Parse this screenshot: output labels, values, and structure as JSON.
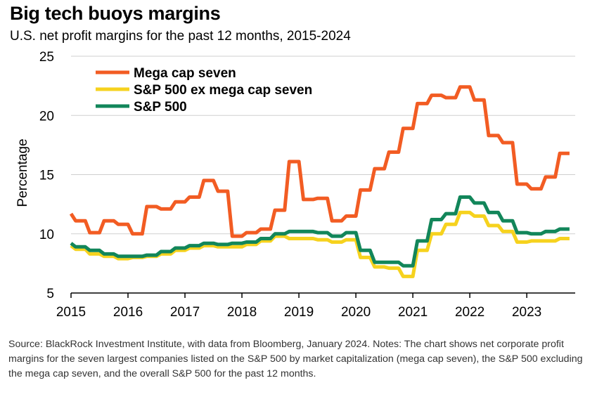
{
  "title": "Big tech buoys margins",
  "subtitle": "U.S. net profit margins for the past 12 months, 2015-2024",
  "notes": "Source: BlackRock Investment Institute, with data from Bloomberg, January 2024. Notes: The chart shows net corporate profit margins for the seven largest companies listed on the S&P 500 by market capitalization (mega cap seven), the S&P 500 excluding the mega cap seven, and the overall S&P 500 for the past 12 months.",
  "chart_data": {
    "type": "line",
    "ylabel": "Percentage",
    "xlabel": "",
    "ylim": [
      5,
      25
    ],
    "xlim": [
      2015,
      2023.85
    ],
    "yticks": [
      5,
      10,
      15,
      20,
      25
    ],
    "xticks": [
      2015,
      2016,
      2017,
      2018,
      2019,
      2020,
      2021,
      2022,
      2023
    ],
    "grid": "horizontal",
    "legend": "top-left",
    "series": [
      {
        "name": "Mega cap seven",
        "color": "#f25c23",
        "points": [
          [
            2015.0,
            11.7
          ],
          [
            2015.08,
            11.1
          ],
          [
            2015.25,
            11.1
          ],
          [
            2015.33,
            10.1
          ],
          [
            2015.5,
            10.1
          ],
          [
            2015.58,
            11.1
          ],
          [
            2015.75,
            11.1
          ],
          [
            2015.83,
            10.8
          ],
          [
            2016.0,
            10.8
          ],
          [
            2016.08,
            10.0
          ],
          [
            2016.25,
            10.0
          ],
          [
            2016.33,
            12.3
          ],
          [
            2016.5,
            12.3
          ],
          [
            2016.58,
            12.1
          ],
          [
            2016.75,
            12.1
          ],
          [
            2016.83,
            12.7
          ],
          [
            2017.0,
            12.7
          ],
          [
            2017.08,
            13.1
          ],
          [
            2017.25,
            13.1
          ],
          [
            2017.33,
            14.5
          ],
          [
            2017.5,
            14.5
          ],
          [
            2017.58,
            13.6
          ],
          [
            2017.75,
            13.6
          ],
          [
            2017.83,
            9.8
          ],
          [
            2018.0,
            9.8
          ],
          [
            2018.08,
            10.1
          ],
          [
            2018.25,
            10.1
          ],
          [
            2018.33,
            10.4
          ],
          [
            2018.5,
            10.4
          ],
          [
            2018.58,
            12.0
          ],
          [
            2018.75,
            12.0
          ],
          [
            2018.83,
            16.1
          ],
          [
            2019.0,
            16.1
          ],
          [
            2019.08,
            12.9
          ],
          [
            2019.25,
            12.9
          ],
          [
            2019.33,
            13.0
          ],
          [
            2019.5,
            13.0
          ],
          [
            2019.58,
            11.1
          ],
          [
            2019.75,
            11.1
          ],
          [
            2019.83,
            11.5
          ],
          [
            2020.0,
            11.5
          ],
          [
            2020.08,
            13.7
          ],
          [
            2020.25,
            13.7
          ],
          [
            2020.33,
            15.5
          ],
          [
            2020.5,
            15.5
          ],
          [
            2020.58,
            16.9
          ],
          [
            2020.75,
            16.9
          ],
          [
            2020.83,
            18.9
          ],
          [
            2021.0,
            18.9
          ],
          [
            2021.08,
            21.0
          ],
          [
            2021.25,
            21.0
          ],
          [
            2021.33,
            21.7
          ],
          [
            2021.5,
            21.7
          ],
          [
            2021.58,
            21.5
          ],
          [
            2021.75,
            21.5
          ],
          [
            2021.83,
            22.4
          ],
          [
            2022.0,
            22.4
          ],
          [
            2022.08,
            21.3
          ],
          [
            2022.25,
            21.3
          ],
          [
            2022.33,
            18.3
          ],
          [
            2022.5,
            18.3
          ],
          [
            2022.58,
            17.7
          ],
          [
            2022.75,
            17.7
          ],
          [
            2022.83,
            14.2
          ],
          [
            2023.0,
            14.2
          ],
          [
            2023.08,
            13.8
          ],
          [
            2023.25,
            13.8
          ],
          [
            2023.33,
            14.8
          ],
          [
            2023.5,
            14.8
          ],
          [
            2023.58,
            16.8
          ],
          [
            2023.75,
            16.8
          ]
        ]
      },
      {
        "name": "S&P 500 ex mega cap seven",
        "color": "#f6d21e",
        "points": [
          [
            2015.0,
            9.0
          ],
          [
            2015.08,
            8.7
          ],
          [
            2015.25,
            8.7
          ],
          [
            2015.33,
            8.3
          ],
          [
            2015.5,
            8.3
          ],
          [
            2015.58,
            8.1
          ],
          [
            2015.75,
            8.1
          ],
          [
            2015.83,
            7.9
          ],
          [
            2016.0,
            7.9
          ],
          [
            2016.08,
            8.0
          ],
          [
            2016.25,
            8.0
          ],
          [
            2016.33,
            8.1
          ],
          [
            2016.5,
            8.1
          ],
          [
            2016.58,
            8.3
          ],
          [
            2016.75,
            8.3
          ],
          [
            2016.83,
            8.6
          ],
          [
            2017.0,
            8.6
          ],
          [
            2017.08,
            8.8
          ],
          [
            2017.25,
            8.8
          ],
          [
            2017.33,
            9.0
          ],
          [
            2017.5,
            9.0
          ],
          [
            2017.58,
            8.9
          ],
          [
            2017.75,
            8.9
          ],
          [
            2017.83,
            8.9
          ],
          [
            2018.0,
            8.9
          ],
          [
            2018.08,
            9.1
          ],
          [
            2018.25,
            9.1
          ],
          [
            2018.33,
            9.4
          ],
          [
            2018.5,
            9.4
          ],
          [
            2018.58,
            9.8
          ],
          [
            2018.75,
            9.8
          ],
          [
            2018.83,
            9.6
          ],
          [
            2019.0,
            9.6
          ],
          [
            2019.08,
            9.6
          ],
          [
            2019.25,
            9.6
          ],
          [
            2019.33,
            9.5
          ],
          [
            2019.5,
            9.5
          ],
          [
            2019.58,
            9.3
          ],
          [
            2019.75,
            9.3
          ],
          [
            2019.83,
            9.5
          ],
          [
            2020.0,
            9.5
          ],
          [
            2020.08,
            8.0
          ],
          [
            2020.25,
            8.0
          ],
          [
            2020.33,
            7.2
          ],
          [
            2020.5,
            7.2
          ],
          [
            2020.58,
            7.1
          ],
          [
            2020.75,
            7.1
          ],
          [
            2020.83,
            6.4
          ],
          [
            2021.0,
            6.4
          ],
          [
            2021.08,
            8.6
          ],
          [
            2021.25,
            8.6
          ],
          [
            2021.33,
            10.0
          ],
          [
            2021.5,
            10.0
          ],
          [
            2021.58,
            10.8
          ],
          [
            2021.75,
            10.8
          ],
          [
            2021.83,
            11.8
          ],
          [
            2022.0,
            11.8
          ],
          [
            2022.08,
            11.5
          ],
          [
            2022.25,
            11.5
          ],
          [
            2022.33,
            10.7
          ],
          [
            2022.5,
            10.7
          ],
          [
            2022.58,
            10.2
          ],
          [
            2022.75,
            10.2
          ],
          [
            2022.83,
            9.3
          ],
          [
            2023.0,
            9.3
          ],
          [
            2023.08,
            9.4
          ],
          [
            2023.25,
            9.4
          ],
          [
            2023.33,
            9.4
          ],
          [
            2023.5,
            9.4
          ],
          [
            2023.58,
            9.6
          ],
          [
            2023.75,
            9.6
          ]
        ]
      },
      {
        "name": "S&P 500",
        "color": "#12865a",
        "points": [
          [
            2015.0,
            9.2
          ],
          [
            2015.08,
            8.9
          ],
          [
            2015.25,
            8.9
          ],
          [
            2015.33,
            8.6
          ],
          [
            2015.5,
            8.6
          ],
          [
            2015.58,
            8.3
          ],
          [
            2015.75,
            8.3
          ],
          [
            2015.83,
            8.1
          ],
          [
            2016.0,
            8.1
          ],
          [
            2016.08,
            8.1
          ],
          [
            2016.25,
            8.1
          ],
          [
            2016.33,
            8.2
          ],
          [
            2016.5,
            8.2
          ],
          [
            2016.58,
            8.5
          ],
          [
            2016.75,
            8.5
          ],
          [
            2016.83,
            8.8
          ],
          [
            2017.0,
            8.8
          ],
          [
            2017.08,
            9.0
          ],
          [
            2017.25,
            9.0
          ],
          [
            2017.33,
            9.2
          ],
          [
            2017.5,
            9.2
          ],
          [
            2017.58,
            9.1
          ],
          [
            2017.75,
            9.1
          ],
          [
            2017.83,
            9.2
          ],
          [
            2018.0,
            9.2
          ],
          [
            2018.08,
            9.3
          ],
          [
            2018.25,
            9.3
          ],
          [
            2018.33,
            9.6
          ],
          [
            2018.5,
            9.6
          ],
          [
            2018.58,
            10.0
          ],
          [
            2018.75,
            10.0
          ],
          [
            2018.83,
            10.2
          ],
          [
            2019.0,
            10.2
          ],
          [
            2019.08,
            10.2
          ],
          [
            2019.25,
            10.2
          ],
          [
            2019.33,
            10.1
          ],
          [
            2019.5,
            10.1
          ],
          [
            2019.58,
            9.8
          ],
          [
            2019.75,
            9.8
          ],
          [
            2019.83,
            10.1
          ],
          [
            2020.0,
            10.1
          ],
          [
            2020.08,
            8.6
          ],
          [
            2020.25,
            8.6
          ],
          [
            2020.33,
            7.6
          ],
          [
            2020.5,
            7.6
          ],
          [
            2020.58,
            7.6
          ],
          [
            2020.75,
            7.6
          ],
          [
            2020.83,
            7.3
          ],
          [
            2021.0,
            7.3
          ],
          [
            2021.08,
            9.4
          ],
          [
            2021.25,
            9.4
          ],
          [
            2021.33,
            11.2
          ],
          [
            2021.5,
            11.2
          ],
          [
            2021.58,
            11.7
          ],
          [
            2021.75,
            11.7
          ],
          [
            2021.83,
            13.1
          ],
          [
            2022.0,
            13.1
          ],
          [
            2022.08,
            12.6
          ],
          [
            2022.25,
            12.6
          ],
          [
            2022.33,
            11.8
          ],
          [
            2022.5,
            11.8
          ],
          [
            2022.58,
            11.1
          ],
          [
            2022.75,
            11.1
          ],
          [
            2022.83,
            10.1
          ],
          [
            2023.0,
            10.1
          ],
          [
            2023.08,
            10.0
          ],
          [
            2023.25,
            10.0
          ],
          [
            2023.33,
            10.2
          ],
          [
            2023.5,
            10.2
          ],
          [
            2023.58,
            10.4
          ],
          [
            2023.75,
            10.4
          ]
        ]
      }
    ]
  }
}
